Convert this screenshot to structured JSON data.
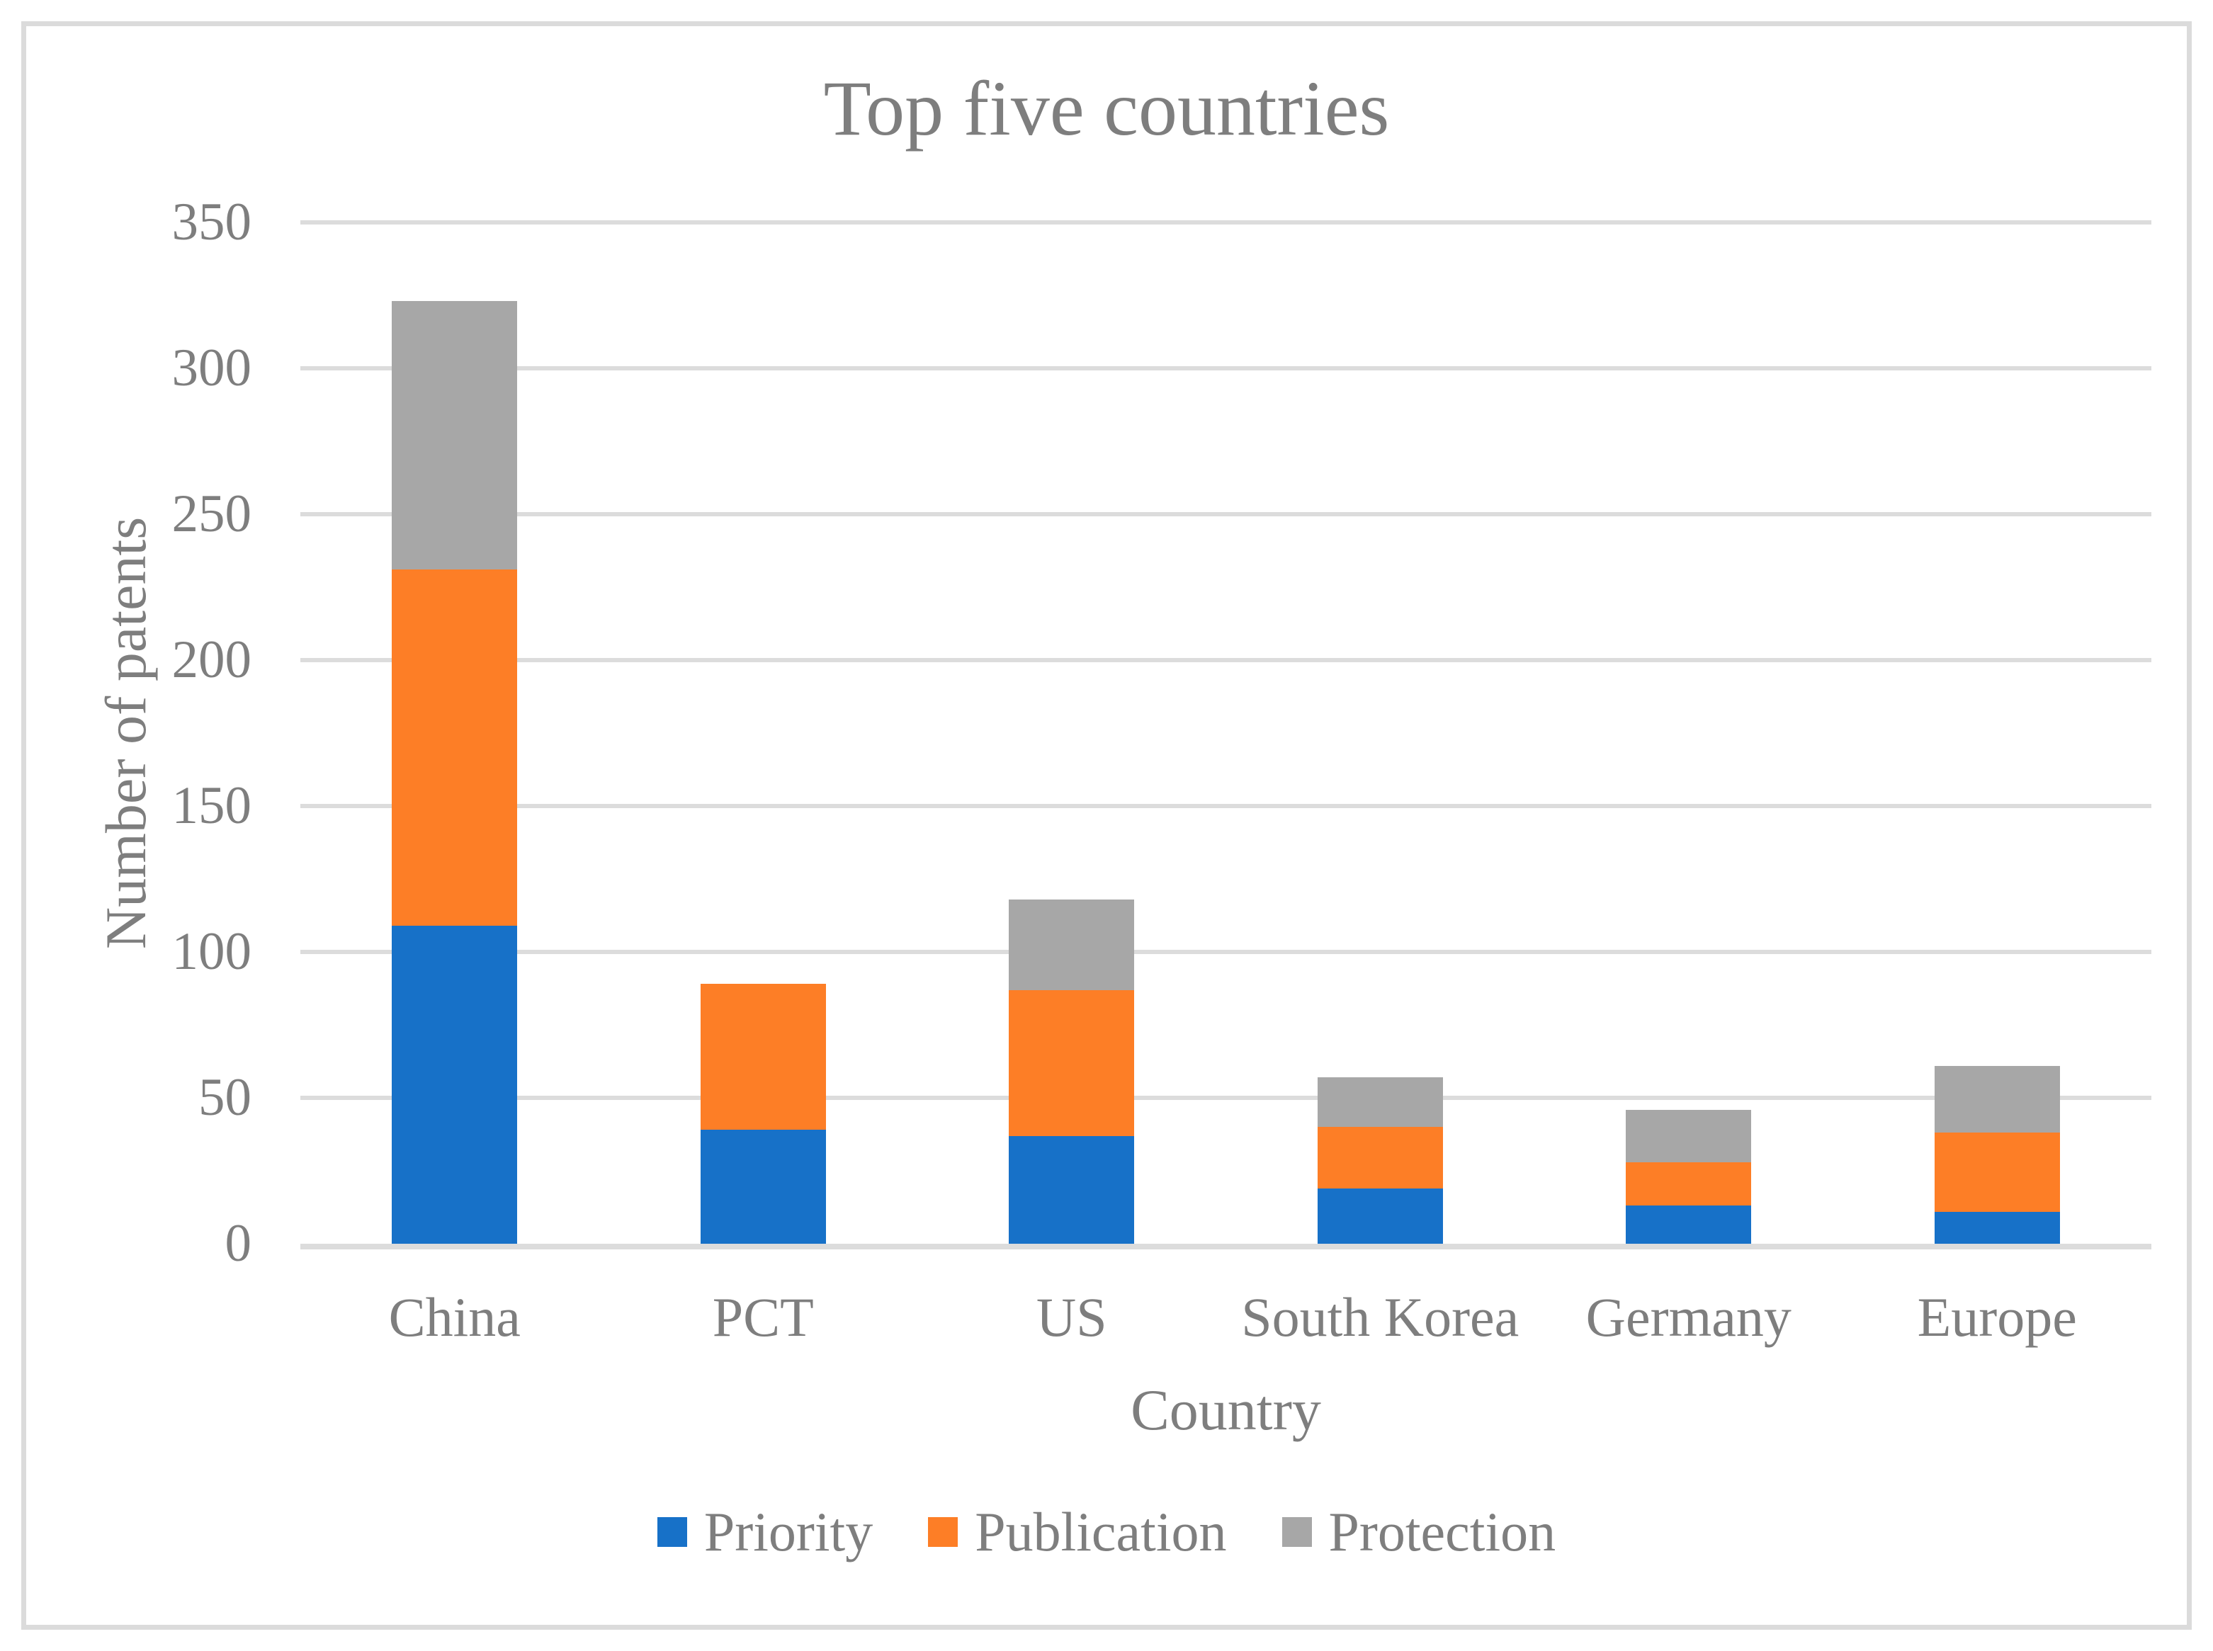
{
  "figure": {
    "background": "#FFFFFF",
    "frame_color": "#DBDBDB"
  },
  "chart_data": {
    "type": "bar",
    "stacked": true,
    "title": "Top five countries",
    "xlabel": "Country",
    "ylabel": "Number of patents",
    "categories": [
      "China",
      "PCT",
      "US",
      "South Korea",
      "Germany",
      "Europe"
    ],
    "series": [
      {
        "name": "Priority",
        "color": "#1771C8",
        "values": [
          109,
          39,
          37,
          19,
          13,
          11
        ]
      },
      {
        "name": "Publication",
        "color": "#FD7E26",
        "values": [
          122,
          50,
          50,
          21,
          15,
          27
        ]
      },
      {
        "name": "Protection",
        "color": "#A7A7A7",
        "values": [
          92,
          0,
          31,
          17,
          18,
          23
        ]
      }
    ],
    "stack_totals": [
      323,
      89,
      118,
      57,
      46,
      61
    ],
    "ylim": [
      0,
      350
    ],
    "yticks": [
      0,
      50,
      100,
      150,
      200,
      250,
      300,
      350
    ],
    "grid": "horizontal",
    "gridline_color": "#DCDCDC",
    "axisline_color": "#D6D6D6",
    "text_color": "#7E7E7E",
    "legend_position": "bottom",
    "legend_labels": [
      "Priority",
      "Publication",
      "Protection"
    ]
  }
}
